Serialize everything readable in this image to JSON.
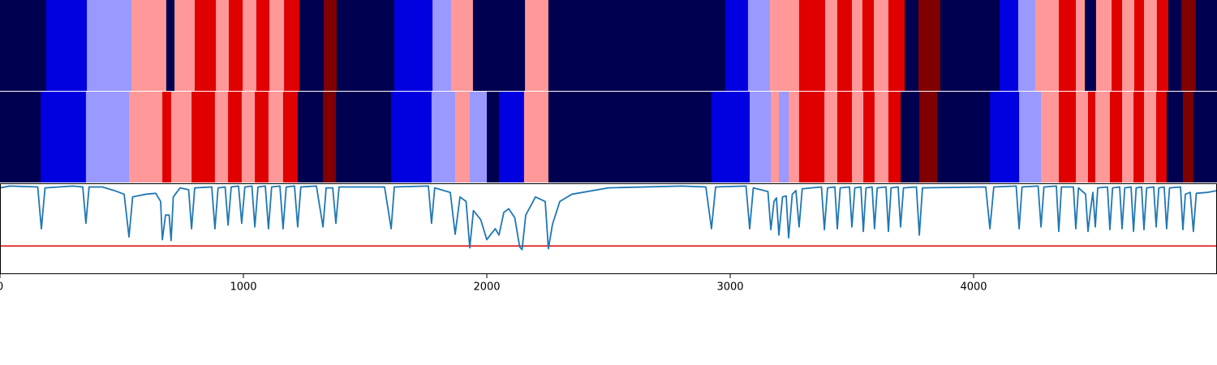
{
  "chart_data": [
    {
      "type": "strip",
      "xlim": [
        0,
        5000
      ],
      "edges": [
        0,
        190,
        357,
        540,
        683,
        717,
        800,
        887,
        940,
        997,
        1053,
        1107,
        1167,
        1230,
        1330,
        1383,
        1620,
        1777,
        1853,
        1943,
        2157,
        2253,
        2980,
        3073,
        3163,
        3283,
        3390,
        3440,
        3500,
        3543,
        3590,
        3650,
        3717,
        3773,
        3863,
        4107,
        4183,
        4253,
        4350,
        4420,
        4457,
        4503,
        4567,
        4610,
        4660,
        4700,
        4753,
        4800,
        4853,
        4913,
        5000
      ],
      "colors": [
        "#000050",
        "#0000e0",
        "#9999ff",
        "#ff9999",
        "#000050",
        "#ff9999",
        "#e00000",
        "#ff9999",
        "#e00000",
        "#ff9999",
        "#e00000",
        "#ff9999",
        "#e00000",
        "#000050",
        "#800000",
        "#000050",
        "#0000e0",
        "#9999ff",
        "#ff9999",
        "#000050",
        "#ff9999",
        "#000050",
        "#0000e0",
        "#9999ff",
        "#ff9999",
        "#e00000",
        "#ff9999",
        "#e00000",
        "#ff9999",
        "#e00000",
        "#ff9999",
        "#e00000",
        "#000050",
        "#800000",
        "#000050",
        "#0000e0",
        "#9999ff",
        "#ff9999",
        "#e00000",
        "#ff9999",
        "#000050",
        "#ff9999",
        "#e00000",
        "#ff9999",
        "#e00000",
        "#ff9999",
        "#e00000",
        "#000050",
        "#800000",
        "#000050"
      ]
    },
    {
      "type": "strip",
      "xlim": [
        0,
        5000
      ],
      "edges": [
        0,
        167,
        353,
        530,
        667,
        703,
        787,
        883,
        937,
        993,
        1047,
        1103,
        1163,
        1223,
        1327,
        1380,
        1607,
        1773,
        1870,
        1930,
        2000,
        2050,
        2153,
        2253,
        2923,
        3080,
        3167,
        3200,
        3240,
        3283,
        3387,
        3440,
        3500,
        3547,
        3593,
        3650,
        3700,
        3777,
        3850,
        4067,
        4187,
        4277,
        4350,
        4420,
        4470,
        4500,
        4560,
        4610,
        4657,
        4700,
        4750,
        4793,
        4860,
        4903,
        5000
      ],
      "colors": [
        "#000050",
        "#0000e0",
        "#9999ff",
        "#ff9999",
        "#e00000",
        "#ff9999",
        "#e00000",
        "#ff9999",
        "#e00000",
        "#ff9999",
        "#e00000",
        "#ff9999",
        "#e00000",
        "#000050",
        "#800000",
        "#000050",
        "#0000e0",
        "#9999ff",
        "#ff9999",
        "#9999ff",
        "#000050",
        "#0000e0",
        "#ff9999",
        "#000050",
        "#0000e0",
        "#9999ff",
        "#ff9999",
        "#9999ff",
        "#ff9999",
        "#e00000",
        "#ff9999",
        "#e00000",
        "#ff9999",
        "#e00000",
        "#ff9999",
        "#e00000",
        "#000050",
        "#800000",
        "#000050",
        "#0000e0",
        "#9999ff",
        "#ff9999",
        "#e00000",
        "#ff9999",
        "#e00000",
        "#ff9999",
        "#e00000",
        "#ff9999",
        "#e00000",
        "#ff9999",
        "#e00000",
        "#000050",
        "#800000",
        "#000050"
      ]
    },
    {
      "type": "line",
      "color": "#1f77b4",
      "xlim": [
        0,
        5000
      ],
      "ylim": [
        0,
        1
      ],
      "xticks": [
        0,
        1000,
        2000,
        3000,
        4000
      ],
      "threshold": 0.31,
      "threshold_color": "#e00000",
      "x": [
        0,
        40,
        155,
        170,
        185,
        300,
        340,
        353,
        366,
        420,
        470,
        510,
        530,
        545,
        600,
        640,
        660,
        667,
        680,
        695,
        703,
        712,
        740,
        775,
        787,
        800,
        870,
        883,
        896,
        925,
        937,
        950,
        980,
        993,
        1006,
        1035,
        1047,
        1060,
        1090,
        1103,
        1116,
        1150,
        1163,
        1176,
        1210,
        1223,
        1236,
        1300,
        1327,
        1340,
        1367,
        1380,
        1393,
        1580,
        1607,
        1620,
        1760,
        1773,
        1786,
        1850,
        1870,
        1890,
        1915,
        1930,
        1945,
        1975,
        2000,
        2020,
        2035,
        2050,
        2070,
        2090,
        2115,
        2135,
        2145,
        2160,
        2200,
        2240,
        2253,
        2270,
        2300,
        2350,
        2500,
        2800,
        2900,
        2923,
        2940,
        3065,
        3080,
        3095,
        3155,
        3167,
        3180,
        3190,
        3200,
        3215,
        3230,
        3240,
        3255,
        3270,
        3283,
        3296,
        3375,
        3387,
        3400,
        3430,
        3440,
        3452,
        3490,
        3500,
        3512,
        3537,
        3547,
        3558,
        3583,
        3593,
        3604,
        3640,
        3650,
        3661,
        3690,
        3700,
        3712,
        3765,
        3777,
        3790,
        4050,
        4067,
        4083,
        4175,
        4187,
        4199,
        4265,
        4277,
        4289,
        4340,
        4350,
        4361,
        4410,
        4420,
        4431,
        4460,
        4470,
        4480,
        4490,
        4500,
        4510,
        4550,
        4560,
        4571,
        4600,
        4610,
        4621,
        4647,
        4657,
        4668,
        4690,
        4700,
        4711,
        4740,
        4750,
        4761,
        4783,
        4793,
        4805,
        4850,
        4860,
        4870,
        4890,
        4903,
        4915,
        4960,
        5000
      ],
      "values": [
        0.95,
        0.97,
        0.96,
        0.5,
        0.95,
        0.97,
        0.96,
        0.56,
        0.96,
        0.96,
        0.92,
        0.88,
        0.41,
        0.85,
        0.88,
        0.89,
        0.8,
        0.38,
        0.65,
        0.65,
        0.37,
        0.85,
        0.95,
        0.93,
        0.5,
        0.95,
        0.96,
        0.5,
        0.95,
        0.96,
        0.54,
        0.96,
        0.97,
        0.56,
        0.96,
        0.97,
        0.52,
        0.96,
        0.97,
        0.5,
        0.96,
        0.97,
        0.5,
        0.96,
        0.97,
        0.52,
        0.96,
        0.97,
        0.52,
        0.95,
        0.95,
        0.56,
        0.96,
        0.96,
        0.5,
        0.96,
        0.97,
        0.56,
        0.95,
        0.9,
        0.44,
        0.85,
        0.8,
        0.29,
        0.7,
        0.6,
        0.38,
        0.45,
        0.5,
        0.43,
        0.68,
        0.72,
        0.62,
        0.3,
        0.27,
        0.65,
        0.85,
        0.8,
        0.28,
        0.55,
        0.8,
        0.88,
        0.95,
        0.97,
        0.96,
        0.5,
        0.96,
        0.97,
        0.5,
        0.95,
        0.91,
        0.49,
        0.8,
        0.84,
        0.43,
        0.85,
        0.86,
        0.4,
        0.88,
        0.92,
        0.52,
        0.94,
        0.96,
        0.49,
        0.95,
        0.96,
        0.5,
        0.95,
        0.96,
        0.52,
        0.95,
        0.96,
        0.47,
        0.95,
        0.96,
        0.5,
        0.95,
        0.96,
        0.47,
        0.95,
        0.96,
        0.52,
        0.95,
        0.96,
        0.43,
        0.95,
        0.96,
        0.5,
        0.96,
        0.97,
        0.5,
        0.96,
        0.97,
        0.52,
        0.96,
        0.97,
        0.47,
        0.96,
        0.96,
        0.5,
        0.95,
        0.88,
        0.47,
        0.7,
        0.9,
        0.52,
        0.95,
        0.96,
        0.49,
        0.95,
        0.96,
        0.5,
        0.95,
        0.96,
        0.47,
        0.95,
        0.96,
        0.49,
        0.95,
        0.96,
        0.52,
        0.95,
        0.96,
        0.5,
        0.95,
        0.96,
        0.49,
        0.88,
        0.9,
        0.47,
        0.89,
        0.9,
        0.92
      ]
    }
  ]
}
